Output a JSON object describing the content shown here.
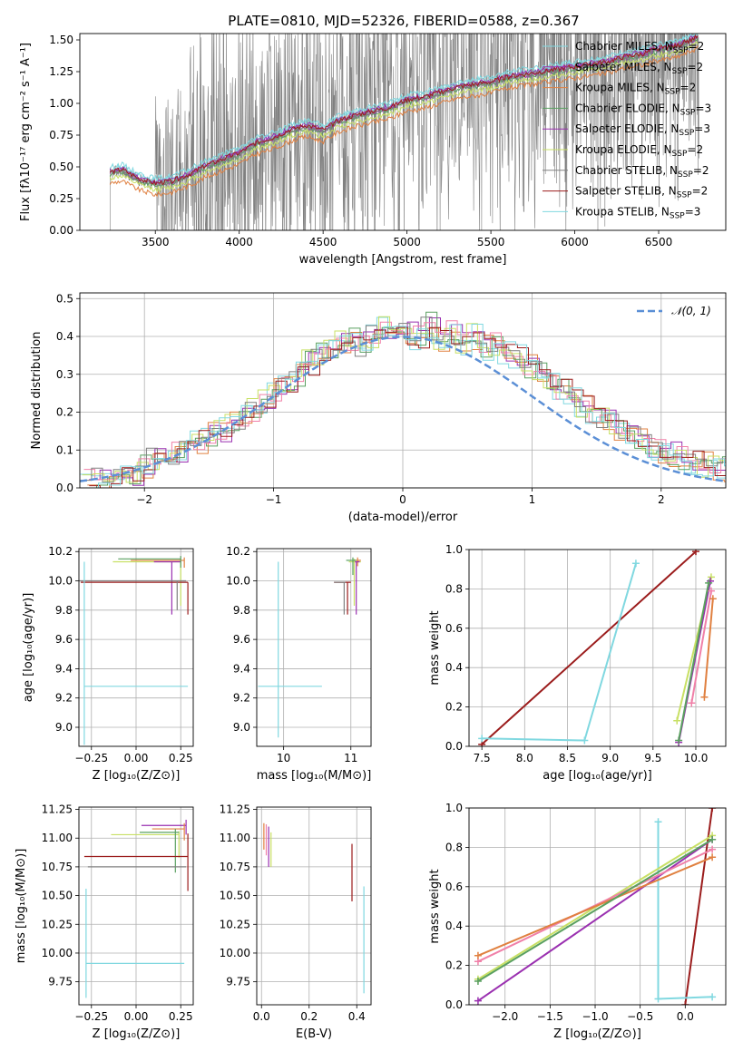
{
  "figure": {
    "title": "PLATE=0810, MJD=52326, FIBERID=0588, z=0.367"
  },
  "palette": {
    "gray": "#808080",
    "purple": "#9a30b0",
    "yellowgreen": "#c8e064",
    "darkred": "#9b1c1c",
    "cyan": "#80d8e0",
    "orange": "#e08040",
    "green": "#5aa060",
    "pink": "#f080a8",
    "blue": "#5b8fd6",
    "olive": "#8aa03c"
  },
  "chart_data": [
    {
      "id": "spectrum",
      "type": "line",
      "xlabel": "wavelength [Angstrom, rest frame]",
      "ylabel": "Flux [fλ10⁻¹⁷ erg cm⁻² s⁻¹ A⁻¹]",
      "xlim": [
        3050,
        6900
      ],
      "ylim": [
        0,
        1.55
      ],
      "xticks": [
        3500,
        4000,
        4500,
        5000,
        5500,
        6000,
        6500
      ],
      "xtick_labels": [
        "3500",
        "4000",
        "4500",
        "5000",
        "5500",
        "6000",
        "6500"
      ],
      "yticks": [
        0,
        0.25,
        0.5,
        0.75,
        1.0,
        1.25,
        1.5
      ],
      "ytick_labels": [
        "0.00",
        "0.25",
        "0.50",
        "0.75",
        "1.00",
        "1.25",
        "1.50"
      ],
      "grid": false,
      "legend_position": "top-right",
      "data_start": 3230,
      "data_end": 6740,
      "model_x": [
        3230,
        3300,
        3400,
        3500,
        3600,
        3700,
        3800,
        3900,
        4000,
        4100,
        4200,
        4300,
        4400,
        4500,
        4600,
        4700,
        4800,
        4900,
        5000,
        5100,
        5200,
        5300,
        5400,
        5500,
        5600,
        5700,
        5800,
        5900,
        6000,
        6100,
        6200,
        6300,
        6400,
        6500,
        6600,
        6740
      ],
      "model_y": [
        0.45,
        0.47,
        0.4,
        0.36,
        0.38,
        0.43,
        0.5,
        0.55,
        0.6,
        0.68,
        0.72,
        0.78,
        0.82,
        0.78,
        0.86,
        0.9,
        0.93,
        0.96,
        1.02,
        1.04,
        1.08,
        1.12,
        1.14,
        1.16,
        1.2,
        1.22,
        1.24,
        1.26,
        1.28,
        1.3,
        1.32,
        1.36,
        1.38,
        1.42,
        1.44,
        1.52
      ],
      "series": [
        {
          "name": "Chabrier MILES, N_SSP=2",
          "color_key": "cyan",
          "offset": 0.03
        },
        {
          "name": "Salpeter MILES, N_SSP=2",
          "color_key": "purple",
          "offset": 0.0
        },
        {
          "name": "Kroupa MILES, N_SSP=2",
          "color_key": "orange",
          "offset": -0.08
        },
        {
          "name": "Chabrier ELODIE, N_SSP=3",
          "color_key": "green",
          "offset": -0.01
        },
        {
          "name": "Salpeter ELODIE, N_SSP=3",
          "color_key": "purple",
          "offset": 0.02
        },
        {
          "name": "Kroupa ELODIE, N_SSP=2",
          "color_key": "yellowgreen",
          "offset": -0.04
        },
        {
          "name": "Chabrier STELIB, N_SSP=2",
          "color_key": "gray",
          "offset": 0.0
        },
        {
          "name": "Salpeter STELIB, N_SSP=2",
          "color_key": "darkred",
          "offset": 0.01
        },
        {
          "name": "Kroupa STELIB, N_SSP=3",
          "color_key": "cyan",
          "offset": 0.05
        }
      ]
    },
    {
      "id": "residuals",
      "type": "line",
      "xlabel": "(data-model)/error",
      "ylabel": "Normed distribution",
      "xlim": [
        -2.5,
        2.5
      ],
      "ylim": [
        0,
        0.515
      ],
      "xticks": [
        -2,
        -1,
        0,
        1,
        2
      ],
      "xtick_labels": [
        "−2",
        "−1",
        "0",
        "1",
        "2"
      ],
      "yticks": [
        0,
        0.1,
        0.2,
        0.3,
        0.4,
        0.5
      ],
      "ytick_labels": [
        "0.0",
        "0.1",
        "0.2",
        "0.3",
        "0.4",
        "0.5"
      ],
      "grid": true,
      "legend_position": "top-right",
      "legend_label": "𝒩(0, 1)",
      "bin_width": 0.1,
      "base_hist": [
        0.02,
        0.025,
        0.03,
        0.035,
        0.04,
        0.06,
        0.07,
        0.08,
        0.095,
        0.1,
        0.12,
        0.14,
        0.15,
        0.17,
        0.19,
        0.21,
        0.23,
        0.26,
        0.28,
        0.3,
        0.33,
        0.35,
        0.37,
        0.38,
        0.39,
        0.38,
        0.4,
        0.42,
        0.4,
        0.41,
        0.4,
        0.43,
        0.39,
        0.41,
        0.38,
        0.4,
        0.37,
        0.38,
        0.36,
        0.35,
        0.32,
        0.3,
        0.28,
        0.26,
        0.24,
        0.22,
        0.2,
        0.18,
        0.16,
        0.14,
        0.13,
        0.11,
        0.1,
        0.09,
        0.08,
        0.07,
        0.06,
        0.055,
        0.05,
        0.045
      ],
      "series": [
        {
          "name": "Chabrier MILES",
          "color_key": "cyan",
          "seed": 1
        },
        {
          "name": "Salpeter MILES",
          "color_key": "purple",
          "seed": 2
        },
        {
          "name": "Kroupa MILES",
          "color_key": "orange",
          "seed": 3
        },
        {
          "name": "Chabrier ELODIE",
          "color_key": "green",
          "seed": 4
        },
        {
          "name": "Salpeter ELODIE",
          "color_key": "pink",
          "seed": 5
        },
        {
          "name": "Kroupa ELODIE",
          "color_key": "yellowgreen",
          "seed": 6
        },
        {
          "name": "Chabrier STELIB",
          "color_key": "gray",
          "seed": 7
        },
        {
          "name": "Salpeter STELIB",
          "color_key": "darkred",
          "seed": 8
        },
        {
          "name": "Kroupa STELIB",
          "color_key": "cyan",
          "seed": 9
        }
      ]
    },
    {
      "id": "age-vs-z",
      "type": "scatter",
      "xlabel": "Z [log₁₀(Z/Z⊙)]",
      "ylabel": "age  [log₁₀(age/yr)]",
      "xlim": [
        -0.32,
        0.32
      ],
      "ylim": [
        8.87,
        10.22
      ],
      "xticks": [
        -0.25,
        0.0,
        0.25
      ],
      "xtick_labels": [
        "−0.25",
        "0.00",
        "0.25"
      ],
      "yticks": [
        9.0,
        9.2,
        9.4,
        9.6,
        9.8,
        10.0,
        10.2
      ],
      "ytick_labels": [
        "9.0",
        "9.2",
        "9.4",
        "9.6",
        "9.8",
        "10.0",
        "10.2"
      ],
      "grid": true,
      "points": [
        {
          "x": 0.25,
          "y": 10.13,
          "xerr": [
            0.38,
            0.0
          ],
          "yerr": [
            0.3,
            0.02
          ],
          "color_key": "yellowgreen"
        },
        {
          "x": 0.27,
          "y": 10.14,
          "xerr": [
            0.3,
            0.0
          ],
          "yerr": [
            0.05,
            0.02
          ],
          "color_key": "orange"
        },
        {
          "x": 0.2,
          "y": 10.13,
          "xerr": [
            0.1,
            0.05
          ],
          "yerr": [
            0.36,
            0.0
          ],
          "color_key": "purple"
        },
        {
          "x": 0.25,
          "y": 10.15,
          "xerr": [
            0.35,
            0.0
          ],
          "yerr": [
            0.06,
            0.02
          ],
          "color_key": "green"
        },
        {
          "x": 0.29,
          "y": 9.99,
          "xerr": [
            0.6,
            0.0
          ],
          "yerr": [
            0.22,
            0.0
          ],
          "color_key": "darkred"
        },
        {
          "x": 0.23,
          "y": 10.0,
          "xerr": [
            0.55,
            0.05
          ],
          "yerr": [
            0.2,
            0.0
          ],
          "color_key": "gray"
        },
        {
          "x": -0.29,
          "y": 9.28,
          "xerr": [
            0.0,
            0.58
          ],
          "yerr": [
            0.4,
            0.85
          ],
          "color_key": "cyan"
        }
      ]
    },
    {
      "id": "age-vs-mass",
      "type": "scatter",
      "xlabel": "mass [log₁₀(M/M⊙)]",
      "ylabel": "",
      "xlim": [
        9.6,
        11.3
      ],
      "ylim": [
        8.87,
        10.22
      ],
      "xticks": [
        10,
        11
      ],
      "xtick_labels": [
        "10",
        "11"
      ],
      "yticks": [
        9.0,
        9.2,
        9.4,
        9.6,
        9.8,
        10.0,
        10.2
      ],
      "ytick_labels": [
        "9.0",
        "9.2",
        "9.4",
        "9.6",
        "9.8",
        "10.0",
        "10.2"
      ],
      "grid": true,
      "points": [
        {
          "x": 11.05,
          "y": 10.13,
          "xerr": [
            0.08,
            0.1
          ],
          "yerr": [
            0.3,
            0.02
          ],
          "color_key": "yellowgreen"
        },
        {
          "x": 11.1,
          "y": 10.14,
          "xerr": [
            0.05,
            0.05
          ],
          "yerr": [
            0.04,
            0.02
          ],
          "color_key": "orange"
        },
        {
          "x": 11.08,
          "y": 10.13,
          "xerr": [
            0.02,
            0.05
          ],
          "yerr": [
            0.36,
            0.0
          ],
          "color_key": "purple"
        },
        {
          "x": 11.03,
          "y": 10.14,
          "xerr": [
            0.1,
            0.05
          ],
          "yerr": [
            0.1,
            0.02
          ],
          "color_key": "green"
        },
        {
          "x": 10.95,
          "y": 9.99,
          "xerr": [
            0.2,
            0.05
          ],
          "yerr": [
            0.22,
            0.0
          ],
          "color_key": "darkred"
        },
        {
          "x": 10.9,
          "y": 9.99,
          "xerr": [
            0.15,
            0.02
          ],
          "yerr": [
            0.22,
            0.0
          ],
          "color_key": "gray"
        },
        {
          "x": 9.92,
          "y": 9.28,
          "xerr": [
            0.3,
            0.65
          ],
          "yerr": [
            0.35,
            0.85
          ],
          "color_key": "cyan"
        }
      ]
    },
    {
      "id": "weight-vs-age",
      "type": "line",
      "xlabel": "age  [log₁₀(age/yr)]",
      "ylabel": "mass weight",
      "xlim": [
        7.35,
        10.35
      ],
      "ylim": [
        0,
        1
      ],
      "xticks": [
        7.5,
        8.0,
        8.5,
        9.0,
        9.5,
        10.0
      ],
      "xtick_labels": [
        "7.5",
        "8.0",
        "8.5",
        "9.0",
        "9.5",
        "10.0"
      ],
      "yticks": [
        0,
        0.2,
        0.4,
        0.6,
        0.8,
        1.0
      ],
      "ytick_labels": [
        "0.0",
        "0.2",
        "0.4",
        "0.6",
        "0.8",
        "1.0"
      ],
      "grid": true,
      "series": [
        {
          "x": [
            7.5,
            10.0
          ],
          "y": [
            0.01,
            0.99
          ],
          "color_key": "darkred"
        },
        {
          "x": [
            7.5,
            8.7,
            9.3
          ],
          "y": [
            0.04,
            0.03,
            0.93
          ],
          "color_key": "cyan"
        },
        {
          "x": [
            9.78,
            10.18
          ],
          "y": [
            0.13,
            0.86
          ],
          "color_key": "yellowgreen"
        },
        {
          "x": [
            9.8,
            10.17
          ],
          "y": [
            0.02,
            0.84
          ],
          "color_key": "purple"
        },
        {
          "x": [
            9.95,
            10.18
          ],
          "y": [
            0.22,
            0.79
          ],
          "color_key": "pink"
        },
        {
          "x": [
            10.1,
            10.2
          ],
          "y": [
            0.25,
            0.75
          ],
          "color_key": "orange"
        },
        {
          "x": [
            9.8,
            10.15
          ],
          "y": [
            0.03,
            0.83
          ],
          "color_key": "green"
        }
      ]
    },
    {
      "id": "mass-vs-z",
      "type": "scatter",
      "xlabel": "Z [log₁₀(Z/Z⊙)]",
      "ylabel": "mass [log₁₀(M/M⊙)]",
      "xlim": [
        -0.32,
        0.32
      ],
      "ylim": [
        9.55,
        11.27
      ],
      "xticks": [
        -0.25,
        0.0,
        0.25
      ],
      "xtick_labels": [
        "−0.25",
        "0.00",
        "0.25"
      ],
      "yticks": [
        9.75,
        10.0,
        10.25,
        10.5,
        10.75,
        11.0,
        11.25
      ],
      "ytick_labels": [
        "9.75",
        "10.00",
        "10.25",
        "10.50",
        "10.75",
        "11.00",
        "11.25"
      ],
      "grid": true,
      "points": [
        {
          "x": 0.28,
          "y": 11.11,
          "xerr": [
            0.25,
            0.0
          ],
          "yerr": [
            0.08,
            0.05
          ],
          "color_key": "purple"
        },
        {
          "x": 0.27,
          "y": 11.08,
          "xerr": [
            0.18,
            0.0
          ],
          "yerr": [
            0.1,
            0.05
          ],
          "color_key": "orange"
        },
        {
          "x": 0.24,
          "y": 11.03,
          "xerr": [
            0.38,
            0.0
          ],
          "yerr": [
            0.2,
            0.03
          ],
          "color_key": "yellowgreen"
        },
        {
          "x": 0.22,
          "y": 11.05,
          "xerr": [
            0.2,
            0.02
          ],
          "yerr": [
            0.35,
            0.03
          ],
          "color_key": "green"
        },
        {
          "x": 0.29,
          "y": 10.84,
          "xerr": [
            0.58,
            0.0
          ],
          "yerr": [
            0.3,
            0.2
          ],
          "color_key": "darkred"
        },
        {
          "x": 0.28,
          "y": 10.75,
          "xerr": [
            0.55,
            0.0
          ],
          "yerr": [
            0.0,
            0.0
          ],
          "color_key": "gray"
        },
        {
          "x": -0.28,
          "y": 9.91,
          "xerr": [
            0.0,
            0.55
          ],
          "yerr": [
            0.3,
            0.65
          ],
          "color_key": "cyan"
        }
      ]
    },
    {
      "id": "mass-vs-ebv",
      "type": "scatter",
      "xlabel": "E(B-V)",
      "ylabel": "",
      "xlim": [
        -0.02,
        0.46
      ],
      "ylim": [
        9.55,
        11.27
      ],
      "xticks": [
        0.0,
        0.2,
        0.4
      ],
      "xtick_labels": [
        "0.0",
        "0.2",
        "0.4"
      ],
      "yticks": [
        9.75,
        10.0,
        10.25,
        10.5,
        10.75,
        11.0,
        11.25
      ],
      "ytick_labels": [
        "9.75",
        "10.00",
        "10.25",
        "10.50",
        "10.75",
        "11.00",
        "11.25"
      ],
      "grid": true,
      "points": [
        {
          "x": 0.01,
          "y": 11.05,
          "xerr": [
            0.0,
            0.0
          ],
          "yerr": [
            0.15,
            0.08
          ],
          "color_key": "orange"
        },
        {
          "x": 0.02,
          "y": 11.0,
          "xerr": [
            0.0,
            0.0
          ],
          "yerr": [
            0.15,
            0.12
          ],
          "color_key": "pink"
        },
        {
          "x": 0.03,
          "y": 11.0,
          "xerr": [
            0.0,
            0.0
          ],
          "yerr": [
            0.25,
            0.1
          ],
          "color_key": "purple"
        },
        {
          "x": 0.04,
          "y": 10.95,
          "xerr": [
            0.0,
            0.0
          ],
          "yerr": [
            0.2,
            0.1
          ],
          "color_key": "yellowgreen"
        },
        {
          "x": 0.38,
          "y": 10.7,
          "xerr": [
            0.0,
            0.0
          ],
          "yerr": [
            0.25,
            0.25
          ],
          "color_key": "darkred"
        },
        {
          "x": 0.43,
          "y": 10.1,
          "xerr": [
            0.0,
            0.0
          ],
          "yerr": [
            0.45,
            0.48
          ],
          "color_key": "cyan"
        }
      ]
    },
    {
      "id": "weight-vs-z",
      "type": "line",
      "xlabel": "Z [log₁₀(Z/Z⊙)]",
      "ylabel": "mass weight",
      "xlim": [
        -2.4,
        0.45
      ],
      "ylim": [
        0,
        1
      ],
      "xticks": [
        -2.0,
        -1.5,
        -1.0,
        -0.5,
        0.0
      ],
      "xtick_labels": [
        "−2.0",
        "−1.5",
        "−1.0",
        "−0.5",
        "0.0"
      ],
      "yticks": [
        0,
        0.2,
        0.4,
        0.6,
        0.8,
        1.0
      ],
      "ytick_labels": [
        "0.0",
        "0.2",
        "0.4",
        "0.6",
        "0.8",
        "1.0"
      ],
      "grid": true,
      "series": [
        {
          "x": [
            0.0,
            0.3
          ],
          "y": [
            0.0,
            1.0
          ],
          "color_key": "darkred"
        },
        {
          "x": [
            -0.3,
            -0.3,
            0.3
          ],
          "y": [
            0.93,
            0.03,
            0.04
          ],
          "color_key": "cyan"
        },
        {
          "x": [
            -2.3,
            0.3
          ],
          "y": [
            0.13,
            0.86
          ],
          "color_key": "yellowgreen"
        },
        {
          "x": [
            -2.3,
            0.3
          ],
          "y": [
            0.02,
            0.84
          ],
          "color_key": "purple"
        },
        {
          "x": [
            -2.3,
            0.3
          ],
          "y": [
            0.22,
            0.79
          ],
          "color_key": "pink"
        },
        {
          "x": [
            -2.3,
            0.3
          ],
          "y": [
            0.25,
            0.75
          ],
          "color_key": "orange"
        },
        {
          "x": [
            -2.3,
            0.3
          ],
          "y": [
            0.12,
            0.84
          ],
          "color_key": "green"
        }
      ]
    }
  ]
}
